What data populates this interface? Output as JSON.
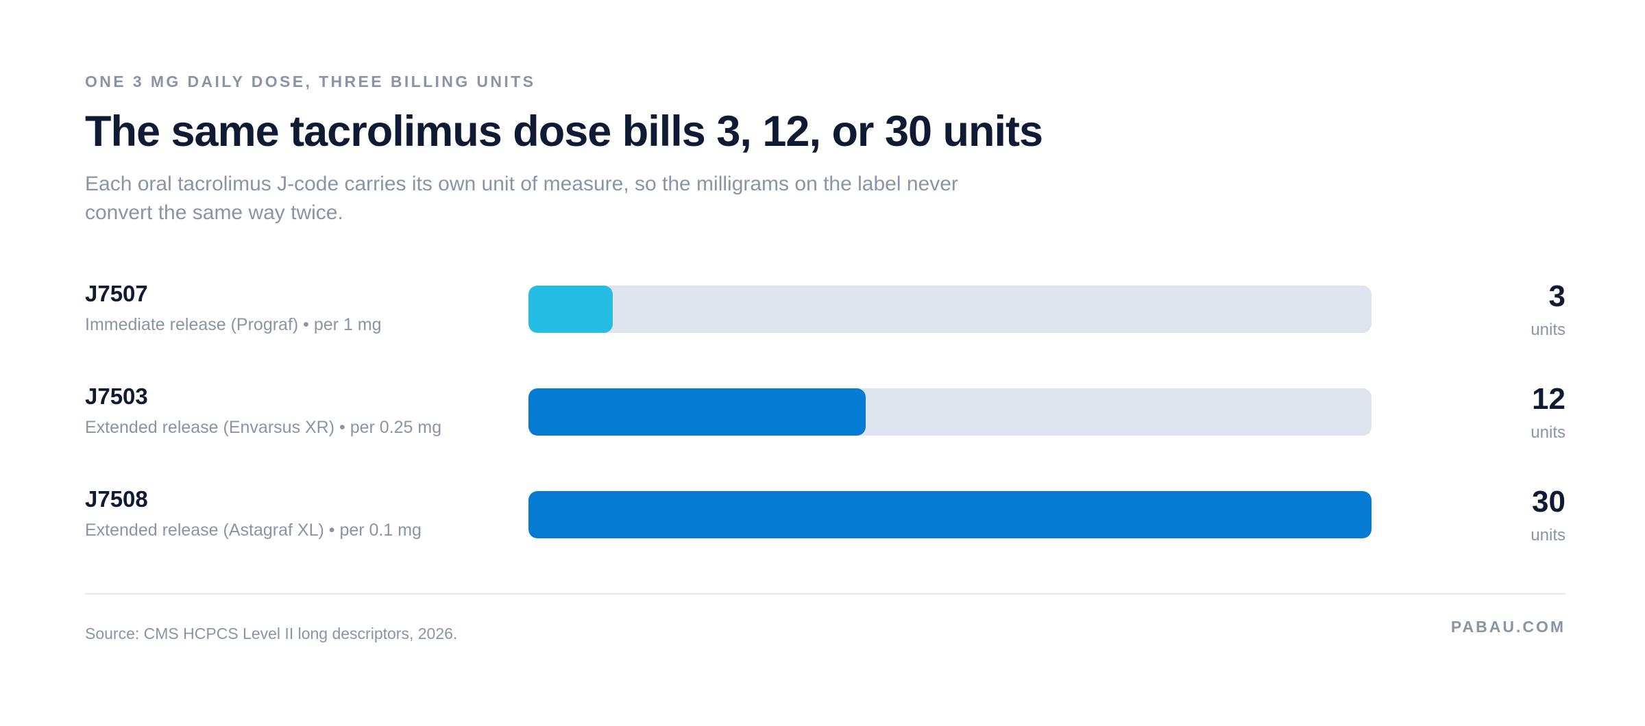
{
  "header": {
    "eyebrow": "ONE 3 MG DAILY DOSE, THREE BILLING UNITS",
    "title": "The same tacrolimus dose bills 3, 12, or 30 units",
    "subtitle": "Each oral tacrolimus J-code carries its own unit of measure, so the milligrams on the label never convert the same way twice."
  },
  "chart_data": {
    "type": "bar",
    "orientation": "horizontal",
    "xlim": [
      0,
      30
    ],
    "unit_label": "units",
    "grid": false,
    "categories": [
      "J7507",
      "J7503",
      "J7508"
    ],
    "descriptions": [
      "Immediate release (Prograf) • per 1 mg",
      "Extended release (Envarsus XR) • per 0.25 mg",
      "Extended release (Astagraf XL) • per 0.1 mg"
    ],
    "values": [
      3,
      12,
      30
    ],
    "colors": [
      "#25bde3",
      "#067bd3",
      "#067bd3"
    ],
    "track_color": "#dfe3ed"
  },
  "footer": {
    "source": "Source: CMS HCPCS Level II long descriptors, 2026.",
    "brand": "PABAU.COM"
  }
}
